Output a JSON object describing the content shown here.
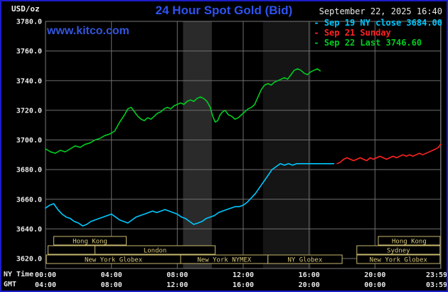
{
  "header": {
    "unit_label": "USD/oz",
    "title": "24 Hour Spot Gold (Bid)",
    "datetime": "September 22, 2025 16:40",
    "website": "www.kitco.com"
  },
  "legend": [
    {
      "label": "- Sep 19 NY close 3684.00",
      "color": "#00c8ff"
    },
    {
      "label": "- Sep 21 Sunday",
      "color": "#ff2222"
    },
    {
      "label": "- Sep 22 Last 3746.60",
      "color": "#00cc22"
    }
  ],
  "axes": {
    "ny_time_label": "NY Time",
    "gmt_label": "GMT",
    "tick_hours": [
      0,
      4,
      8,
      12,
      16,
      20,
      23.983
    ],
    "ny_ticks": [
      "00:00",
      "04:00",
      "08:00",
      "12:00",
      "16:00",
      "20:00",
      "23:59"
    ],
    "gmt_ticks": [
      "04:00",
      "08:00",
      "12:00",
      "16:00",
      "20:00",
      "00:00",
      "03:59"
    ],
    "y_ticks": [
      3620,
      3640,
      3660,
      3680,
      3700,
      3720,
      3740,
      3760,
      3780
    ]
  },
  "colors": {
    "background": "#000000",
    "frame_border": "#1c1cc8",
    "gridline": "#6f6f6f",
    "plot_border": "#787878",
    "session_box_border": "#c9b96e",
    "session_box_text": "#d9c97c",
    "title_blue": "#2e52f0",
    "kitco_blue": "#3355dd"
  },
  "chart_data": {
    "type": "line",
    "title": "24 Hour Spot Gold (Bid)",
    "xlabel": "NY Time (hours 00:00-23:59)",
    "ylabel": "USD/oz",
    "xlim": [
      0,
      24
    ],
    "ylim": [
      3620,
      3780
    ],
    "grid": true,
    "legend_position": "top-right",
    "series": [
      {
        "name": "Sep 19 NY close 3684.00",
        "color": "#00c8ff",
        "points": [
          [
            0,
            3654
          ],
          [
            0.25,
            3656
          ],
          [
            0.5,
            3657
          ],
          [
            0.75,
            3653
          ],
          [
            1,
            3650
          ],
          [
            1.25,
            3648
          ],
          [
            1.5,
            3647
          ],
          [
            1.75,
            3645
          ],
          [
            2,
            3644
          ],
          [
            2.25,
            3642
          ],
          [
            2.5,
            3643
          ],
          [
            2.75,
            3645
          ],
          [
            3,
            3646
          ],
          [
            3.25,
            3647
          ],
          [
            3.5,
            3648
          ],
          [
            3.75,
            3649
          ],
          [
            4,
            3650
          ],
          [
            4.25,
            3648
          ],
          [
            4.5,
            3646
          ],
          [
            4.75,
            3645
          ],
          [
            5,
            3644
          ],
          [
            5.25,
            3646
          ],
          [
            5.5,
            3648
          ],
          [
            5.75,
            3649
          ],
          [
            6,
            3650
          ],
          [
            6.25,
            3651
          ],
          [
            6.5,
            3652
          ],
          [
            6.75,
            3651
          ],
          [
            7,
            3652
          ],
          [
            7.25,
            3653
          ],
          [
            7.5,
            3652
          ],
          [
            7.75,
            3651
          ],
          [
            8,
            3650
          ],
          [
            8.25,
            3648
          ],
          [
            8.5,
            3647
          ],
          [
            8.75,
            3645
          ],
          [
            9,
            3643
          ],
          [
            9.25,
            3644
          ],
          [
            9.5,
            3645
          ],
          [
            9.75,
            3647
          ],
          [
            10,
            3648
          ],
          [
            10.25,
            3649
          ],
          [
            10.5,
            3651
          ],
          [
            10.75,
            3652
          ],
          [
            11,
            3653
          ],
          [
            11.25,
            3654
          ],
          [
            11.5,
            3655
          ],
          [
            11.75,
            3655
          ],
          [
            12,
            3656
          ],
          [
            12.25,
            3658
          ],
          [
            12.5,
            3661
          ],
          [
            12.75,
            3664
          ],
          [
            13,
            3668
          ],
          [
            13.25,
            3672
          ],
          [
            13.5,
            3676
          ],
          [
            13.75,
            3680
          ],
          [
            14,
            3682
          ],
          [
            14.25,
            3684
          ],
          [
            14.5,
            3683
          ],
          [
            14.75,
            3684
          ],
          [
            15,
            3683
          ],
          [
            15.25,
            3684
          ],
          [
            15.5,
            3684
          ],
          [
            15.75,
            3684
          ],
          [
            16,
            3684
          ],
          [
            16.5,
            3684
          ],
          [
            17,
            3684
          ],
          [
            17.5,
            3684
          ]
        ]
      },
      {
        "name": "Sep 21 Sunday",
        "color": "#ff2222",
        "points": [
          [
            17.7,
            3684
          ],
          [
            17.9,
            3685
          ],
          [
            18.1,
            3687
          ],
          [
            18.3,
            3688
          ],
          [
            18.5,
            3687
          ],
          [
            18.7,
            3686
          ],
          [
            18.9,
            3687
          ],
          [
            19.1,
            3688
          ],
          [
            19.3,
            3687
          ],
          [
            19.5,
            3686
          ],
          [
            19.7,
            3688
          ],
          [
            19.9,
            3687
          ],
          [
            20.1,
            3688
          ],
          [
            20.3,
            3689
          ],
          [
            20.5,
            3688
          ],
          [
            20.7,
            3687
          ],
          [
            20.9,
            3688
          ],
          [
            21.1,
            3689
          ],
          [
            21.3,
            3688
          ],
          [
            21.5,
            3689
          ],
          [
            21.7,
            3690
          ],
          [
            21.9,
            3689
          ],
          [
            22.1,
            3690
          ],
          [
            22.3,
            3689
          ],
          [
            22.5,
            3690
          ],
          [
            22.7,
            3691
          ],
          [
            22.9,
            3690
          ],
          [
            23.1,
            3691
          ],
          [
            23.3,
            3692
          ],
          [
            23.5,
            3693
          ],
          [
            23.7,
            3694
          ],
          [
            23.85,
            3695
          ],
          [
            23.98,
            3697
          ]
        ]
      },
      {
        "name": "Sep 22 Last 3746.60",
        "color": "#00cc22",
        "points": [
          [
            0,
            3694
          ],
          [
            0.3,
            3692
          ],
          [
            0.6,
            3691
          ],
          [
            0.9,
            3693
          ],
          [
            1.2,
            3692
          ],
          [
            1.5,
            3694
          ],
          [
            1.8,
            3696
          ],
          [
            2.1,
            3695
          ],
          [
            2.4,
            3697
          ],
          [
            2.7,
            3698
          ],
          [
            3,
            3700
          ],
          [
            3.3,
            3701
          ],
          [
            3.6,
            3703
          ],
          [
            3.9,
            3704
          ],
          [
            4.2,
            3706
          ],
          [
            4.5,
            3712
          ],
          [
            4.8,
            3717
          ],
          [
            5,
            3721
          ],
          [
            5.2,
            3722
          ],
          [
            5.4,
            3719
          ],
          [
            5.6,
            3716
          ],
          [
            5.8,
            3714
          ],
          [
            6,
            3713
          ],
          [
            6.2,
            3715
          ],
          [
            6.4,
            3714
          ],
          [
            6.6,
            3716
          ],
          [
            6.8,
            3718
          ],
          [
            7,
            3719
          ],
          [
            7.2,
            3721
          ],
          [
            7.4,
            3722
          ],
          [
            7.6,
            3721
          ],
          [
            7.8,
            3723
          ],
          [
            8,
            3724
          ],
          [
            8.2,
            3725
          ],
          [
            8.4,
            3724
          ],
          [
            8.6,
            3726
          ],
          [
            8.8,
            3727
          ],
          [
            9,
            3726
          ],
          [
            9.2,
            3728
          ],
          [
            9.4,
            3729
          ],
          [
            9.6,
            3728
          ],
          [
            9.8,
            3726
          ],
          [
            10,
            3722
          ],
          [
            10.15,
            3716
          ],
          [
            10.3,
            3712
          ],
          [
            10.45,
            3713
          ],
          [
            10.6,
            3717
          ],
          [
            10.75,
            3719
          ],
          [
            10.9,
            3720
          ],
          [
            11.1,
            3717
          ],
          [
            11.3,
            3716
          ],
          [
            11.5,
            3714
          ],
          [
            11.7,
            3715
          ],
          [
            11.9,
            3717
          ],
          [
            12.1,
            3719
          ],
          [
            12.3,
            3721
          ],
          [
            12.5,
            3722
          ],
          [
            12.7,
            3724
          ],
          [
            12.9,
            3729
          ],
          [
            13.1,
            3734
          ],
          [
            13.3,
            3737
          ],
          [
            13.5,
            3738
          ],
          [
            13.7,
            3737
          ],
          [
            13.9,
            3739
          ],
          [
            14.1,
            3740
          ],
          [
            14.3,
            3741
          ],
          [
            14.5,
            3742
          ],
          [
            14.7,
            3741
          ],
          [
            14.9,
            3744
          ],
          [
            15.1,
            3747
          ],
          [
            15.3,
            3748
          ],
          [
            15.5,
            3747
          ],
          [
            15.7,
            3745
          ],
          [
            15.9,
            3744
          ],
          [
            16.1,
            3746
          ],
          [
            16.3,
            3747
          ],
          [
            16.5,
            3748
          ],
          [
            16.67,
            3746.6
          ]
        ]
      }
    ],
    "bands": [
      {
        "start": 8.35,
        "end": 10.1,
        "color": "#2a2a2a"
      },
      {
        "start": 13.2,
        "end": 16.1,
        "color": "#151515"
      }
    ],
    "sessions": [
      {
        "row": 0,
        "label": "Hong Kong",
        "start": 0.5,
        "end": 4.9
      },
      {
        "row": 0,
        "label": "Hong Kong",
        "start": 20.2,
        "end": 23.95
      },
      {
        "row": 1,
        "label": "",
        "start": 0.15,
        "end": 3.0
      },
      {
        "row": 1,
        "label": "London",
        "start": 3.0,
        "end": 10.3
      },
      {
        "row": 1,
        "label": "Sydney",
        "start": 18.9,
        "end": 23.95
      },
      {
        "row": 2,
        "label": "New York Globex",
        "start": 0.05,
        "end": 8.2
      },
      {
        "row": 2,
        "label": "New York NYMEX",
        "start": 8.2,
        "end": 13.5
      },
      {
        "row": 2,
        "label": "NY Globex",
        "start": 13.5,
        "end": 18.0
      },
      {
        "row": 2,
        "label": "New York Globex",
        "start": 18.9,
        "end": 23.95
      }
    ]
  }
}
